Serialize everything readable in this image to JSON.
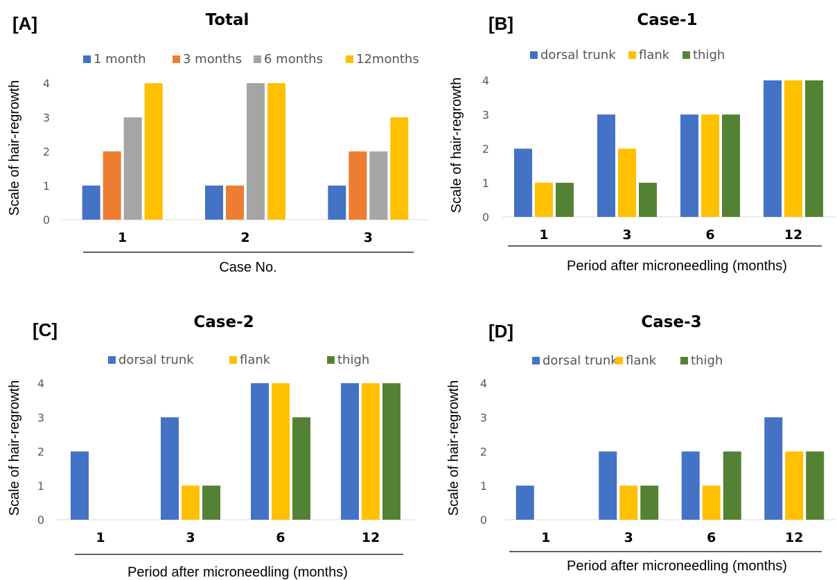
{
  "colors": {
    "blue": "#4472C4",
    "orange": "#ED7D31",
    "gray": "#A5A5A5",
    "yellow": "#FFC000",
    "green": "#548235"
  },
  "chart_data": [
    {
      "panel": "[A]",
      "type": "bar",
      "title": "Total",
      "xlabel": "Case No.",
      "ylabel": "Scale of hair-regrowth",
      "ylim": [
        0,
        4
      ],
      "yticks": [
        0,
        1,
        2,
        3,
        4
      ],
      "categories": [
        "1",
        "2",
        "3"
      ],
      "legend_position": "top",
      "series": [
        {
          "name": "1 month",
          "color": "#4472C4",
          "values": [
            1,
            1,
            1
          ]
        },
        {
          "name": "3 months",
          "color": "#ED7D31",
          "values": [
            2,
            1,
            2
          ]
        },
        {
          "name": "6 months",
          "color": "#A5A5A5",
          "values": [
            3,
            4,
            2
          ]
        },
        {
          "name": "12months",
          "color": "#FFC000",
          "values": [
            4,
            4,
            3
          ]
        }
      ]
    },
    {
      "panel": "[B]",
      "type": "bar",
      "title": "Case-1",
      "xlabel": "Period after microneedling (months)",
      "ylabel": "Scale of hair-regrowth",
      "ylim": [
        0,
        4
      ],
      "yticks": [
        0,
        1,
        2,
        3,
        4
      ],
      "categories": [
        "1",
        "3",
        "6",
        "12"
      ],
      "legend_position": "top",
      "series": [
        {
          "name": "dorsal trunk",
          "color": "#4472C4",
          "values": [
            2,
            3,
            3,
            4
          ]
        },
        {
          "name": "flank",
          "color": "#FFC000",
          "values": [
            1,
            2,
            3,
            4
          ]
        },
        {
          "name": "thigh",
          "color": "#548235",
          "values": [
            1,
            1,
            3,
            4
          ]
        }
      ]
    },
    {
      "panel": "[C]",
      "type": "bar",
      "title": "Case-2",
      "xlabel": "Period after microneedling (months)",
      "ylabel": "Scale of hair-regrowth",
      "ylim": [
        0,
        4
      ],
      "yticks": [
        0,
        1,
        2,
        3,
        4
      ],
      "categories": [
        "1",
        "3",
        "6",
        "12"
      ],
      "legend_position": "top",
      "series": [
        {
          "name": "dorsal trunk",
          "color": "#4472C4",
          "values": [
            2,
            3,
            4,
            4
          ]
        },
        {
          "name": "flank",
          "color": "#FFC000",
          "values": [
            0,
            1,
            4,
            4
          ]
        },
        {
          "name": "thigh",
          "color": "#548235",
          "values": [
            0,
            1,
            3,
            4
          ]
        }
      ]
    },
    {
      "panel": "[D]",
      "type": "bar",
      "title": "Case-3",
      "xlabel": "Period after microneedling (months)",
      "ylabel": "Scale of hair-regrowth",
      "ylim": [
        0,
        4
      ],
      "yticks": [
        0,
        1,
        2,
        3,
        4
      ],
      "categories": [
        "1",
        "3",
        "6",
        "12"
      ],
      "legend_position": "top",
      "series": [
        {
          "name": "dorsal trunk",
          "color": "#4472C4",
          "values": [
            1,
            2,
            2,
            3
          ]
        },
        {
          "name": "flank",
          "color": "#FFC000",
          "values": [
            0,
            1,
            1,
            2
          ]
        },
        {
          "name": "thigh",
          "color": "#548235",
          "values": [
            0,
            1,
            2,
            2
          ]
        }
      ]
    }
  ]
}
